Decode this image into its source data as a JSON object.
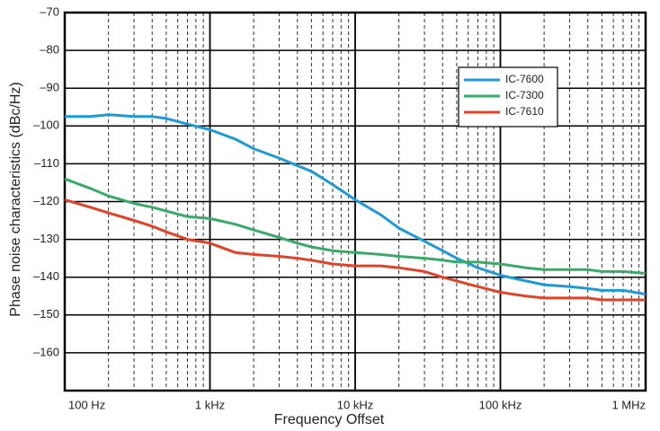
{
  "chart_data": {
    "type": "line",
    "xlabel": "Frequency Offset",
    "ylabel": "Phase noise characteristics (dBc/Hz)",
    "xscale": "log",
    "xlim": [
      100,
      1000000
    ],
    "xticks": [
      {
        "value": 100,
        "label": "100 Hz"
      },
      {
        "value": 1000,
        "label": "1 kHz"
      },
      {
        "value": 10000,
        "label": "10 kHz"
      },
      {
        "value": 100000,
        "label": "100 kHz"
      },
      {
        "value": 1000000,
        "label": "1 MHz"
      }
    ],
    "xminorticks": [
      200,
      300,
      400,
      500,
      600,
      700,
      800,
      900,
      2000,
      3000,
      4000,
      5000,
      6000,
      7000,
      8000,
      9000,
      20000,
      30000,
      40000,
      50000,
      60000,
      70000,
      80000,
      90000,
      200000,
      300000,
      400000,
      500000,
      600000,
      700000,
      800000,
      900000
    ],
    "ylim": [
      -170,
      -70
    ],
    "yticks": [
      {
        "value": -70,
        "label": "–70"
      },
      {
        "value": -80,
        "label": "–80"
      },
      {
        "value": -90,
        "label": "–90"
      },
      {
        "value": -100,
        "label": "–100"
      },
      {
        "value": -110,
        "label": "–110"
      },
      {
        "value": -120,
        "label": "–120"
      },
      {
        "value": -130,
        "label": "–130"
      },
      {
        "value": -140,
        "label": "–140"
      },
      {
        "value": -150,
        "label": "–150"
      },
      {
        "value": -160,
        "label": "–160"
      }
    ],
    "grid": true,
    "legend": "upper right",
    "x": [
      100,
      150,
      200,
      300,
      400,
      500,
      700,
      1000,
      1500,
      2000,
      3000,
      4000,
      5000,
      7000,
      10000,
      15000,
      20000,
      30000,
      40000,
      50000,
      70000,
      100000,
      150000,
      200000,
      300000,
      400000,
      500000,
      700000,
      1000000
    ],
    "series": [
      {
        "name": "IC-7600",
        "color": "#1e9ad6",
        "values": [
          -97.5,
          -97.5,
          -97,
          -97.5,
          -97.5,
          -98,
          -99.5,
          -101,
          -103.5,
          -106,
          -108.5,
          -110.5,
          -112,
          -115.5,
          -119.5,
          -123.5,
          -127,
          -130.5,
          -133,
          -135,
          -137.5,
          -139.5,
          -141,
          -142,
          -142.5,
          -143,
          -143.5,
          -143.5,
          -144.5
        ]
      },
      {
        "name": "IC-7300",
        "color": "#3aaa6a",
        "values": [
          -114,
          -116.5,
          -118.5,
          -120.5,
          -121.5,
          -122.5,
          -124,
          -124.5,
          -126,
          -127.5,
          -129.5,
          -131,
          -132,
          -133,
          -133.5,
          -134,
          -134.5,
          -135,
          -135.5,
          -136,
          -136,
          -136.5,
          -137.5,
          -138,
          -138,
          -138,
          -138.5,
          -138.5,
          -139
        ]
      },
      {
        "name": "IC-7610",
        "color": "#e0432a",
        "values": [
          -119.5,
          -121.5,
          -123,
          -125,
          -126.5,
          -128,
          -130,
          -131,
          -133.5,
          -134,
          -134.5,
          -135,
          -135.5,
          -136.5,
          -137,
          -137,
          -137.5,
          -138.5,
          -140,
          -141,
          -142.5,
          -144,
          -145,
          -145.5,
          -145.5,
          -145.5,
          -146,
          -146,
          -146
        ]
      }
    ]
  }
}
